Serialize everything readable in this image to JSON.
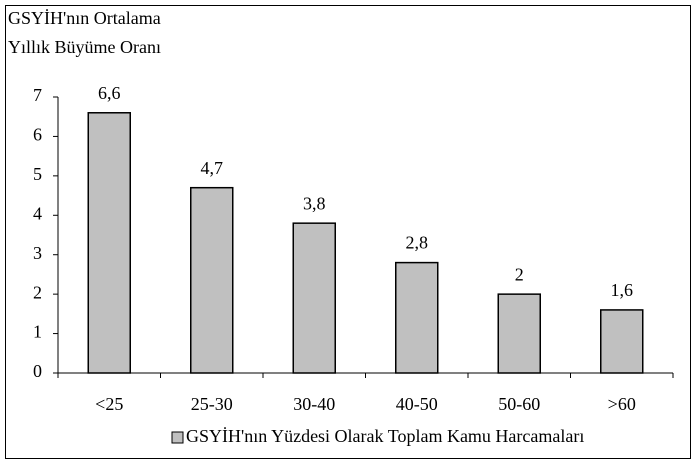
{
  "chart_data": {
    "type": "bar",
    "ylabel": [
      "GSYİH'nın Ortalama",
      "Yıllık Büyüme Oranı"
    ],
    "categories": [
      "<25",
      "25-30",
      "30-40",
      "40-50",
      "50-60",
      ">60"
    ],
    "series": [
      {
        "name": "GSYİH'nın Yüzdesi Olarak Toplam Kamu Harcamaları",
        "color": "#c0c0c0",
        "values": [
          6.6,
          4.7,
          3.8,
          2.8,
          2,
          1.6
        ],
        "value_labels": [
          "6,6",
          "4,7",
          "3,8",
          "2,8",
          "2",
          "1,6"
        ]
      }
    ],
    "ylim": [
      0,
      7
    ],
    "yticks": [
      0,
      1,
      2,
      3,
      4,
      5,
      6,
      7
    ],
    "grid": false,
    "legend": "bottom"
  }
}
